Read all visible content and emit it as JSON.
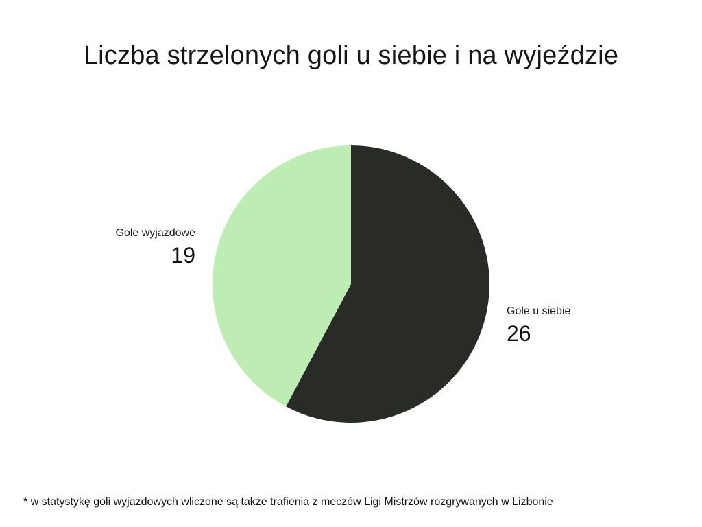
{
  "chart_data": {
    "type": "pie",
    "title": "Liczba strzelonych goli u siebie i na wyjeździe",
    "slices": [
      {
        "label": "Gole u siebie",
        "value": 26,
        "display_value": "26",
        "color": "#282b26"
      },
      {
        "label": "Gole wyjazdowe",
        "value": 19,
        "display_value": "19",
        "color": "#bdedb3"
      }
    ],
    "start_angle": "12 o'clock",
    "direction": "clockwise",
    "legend": "none",
    "data_labels": "outside slices, name above value",
    "footnote": "* w statystykę goli wyjazdowych wliczone są także trafienia z meczów Ligi Mistrzów rozgrywanych w Lizbonie"
  }
}
